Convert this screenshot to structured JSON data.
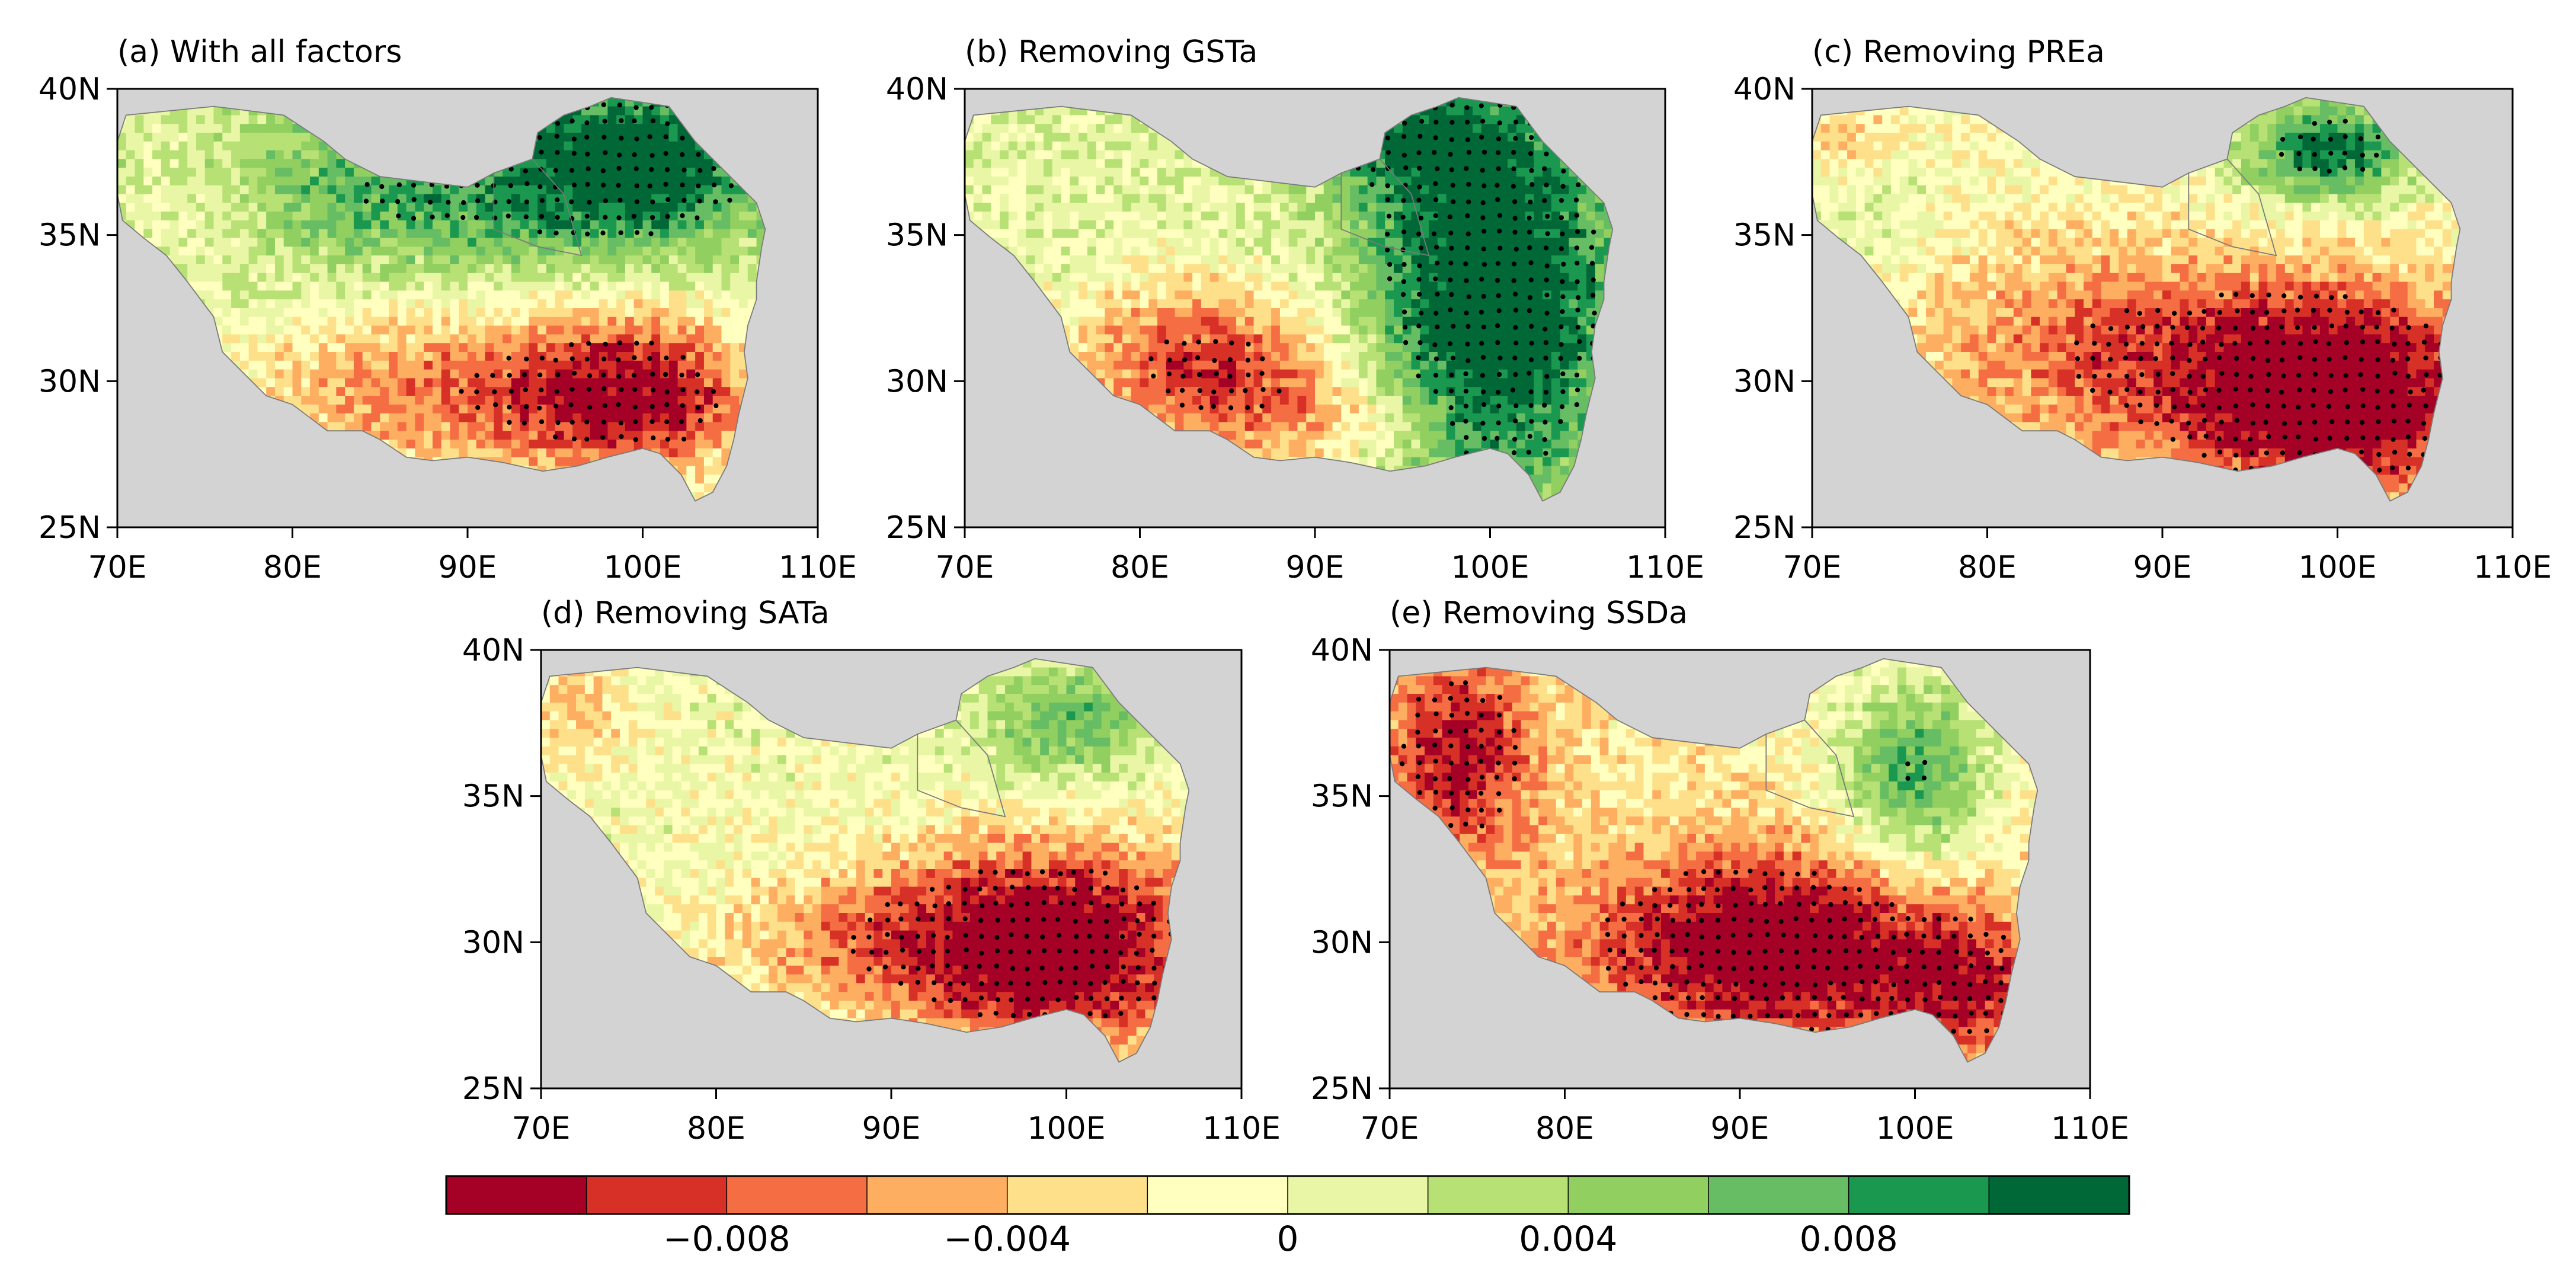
{
  "chart_data": {
    "type": "heatmap",
    "description_colorbar_levels": [
      -0.012,
      -0.01,
      -0.008,
      -0.006,
      -0.004,
      -0.002,
      0,
      0.002,
      0.004,
      0.006,
      0.008,
      0.01,
      0.012
    ],
    "colorbar": {
      "colors": [
        "#a50026",
        "#d73027",
        "#f46d43",
        "#fdae61",
        "#fee08b",
        "#ffffbf",
        "#e8f6a5",
        "#b7e075",
        "#91cf60",
        "#66bd63",
        "#1a9850",
        "#006837"
      ],
      "tick_values": [
        -0.008,
        -0.004,
        0,
        0.004,
        0.008
      ],
      "tick_labels": [
        "−0.008",
        "−0.004",
        "0",
        "0.004",
        "0.008"
      ],
      "range": [
        -0.012,
        0.012
      ]
    },
    "map_colors": {
      "ocean": "#d3d3d3",
      "land": "#ffffbf",
      "coast": "#888888",
      "stipple": "#000000"
    },
    "axes": {
      "lon_range": [
        70,
        110
      ],
      "lat_range": [
        25,
        40
      ],
      "lon_ticks": [
        70,
        80,
        90,
        100,
        110
      ],
      "lon_labels": [
        "70E",
        "80E",
        "90E",
        "100E",
        "110E"
      ],
      "lat_ticks": [
        25,
        30,
        35,
        40
      ],
      "lat_labels": [
        "25N",
        "30N",
        "35N",
        "40N"
      ]
    },
    "panels": [
      {
        "id": "a",
        "title": "(a) With all factors"
      },
      {
        "id": "b",
        "title": "(b) Removing GSTa"
      },
      {
        "id": "c",
        "title": "(c) Removing PREa"
      },
      {
        "id": "d",
        "title": "(d) Removing SATa"
      },
      {
        "id": "e",
        "title": "(e) Removing SSDa"
      }
    ]
  }
}
